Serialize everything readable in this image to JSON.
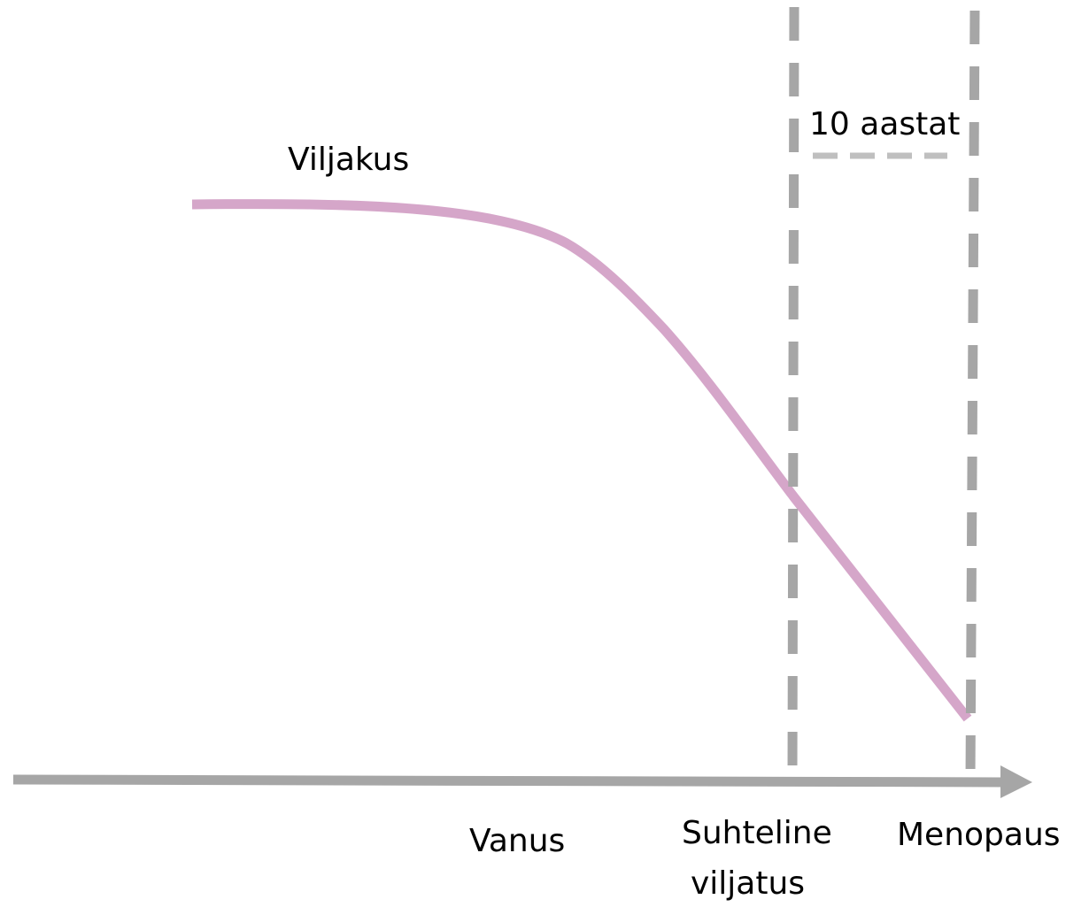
{
  "labels": {
    "curve": "Viljakus",
    "interval": "10 aastat",
    "axis": "Vanus",
    "relative_infertility": [
      "Suhteline",
      "viljatus"
    ],
    "menopause": "Menopaus"
  }
}
